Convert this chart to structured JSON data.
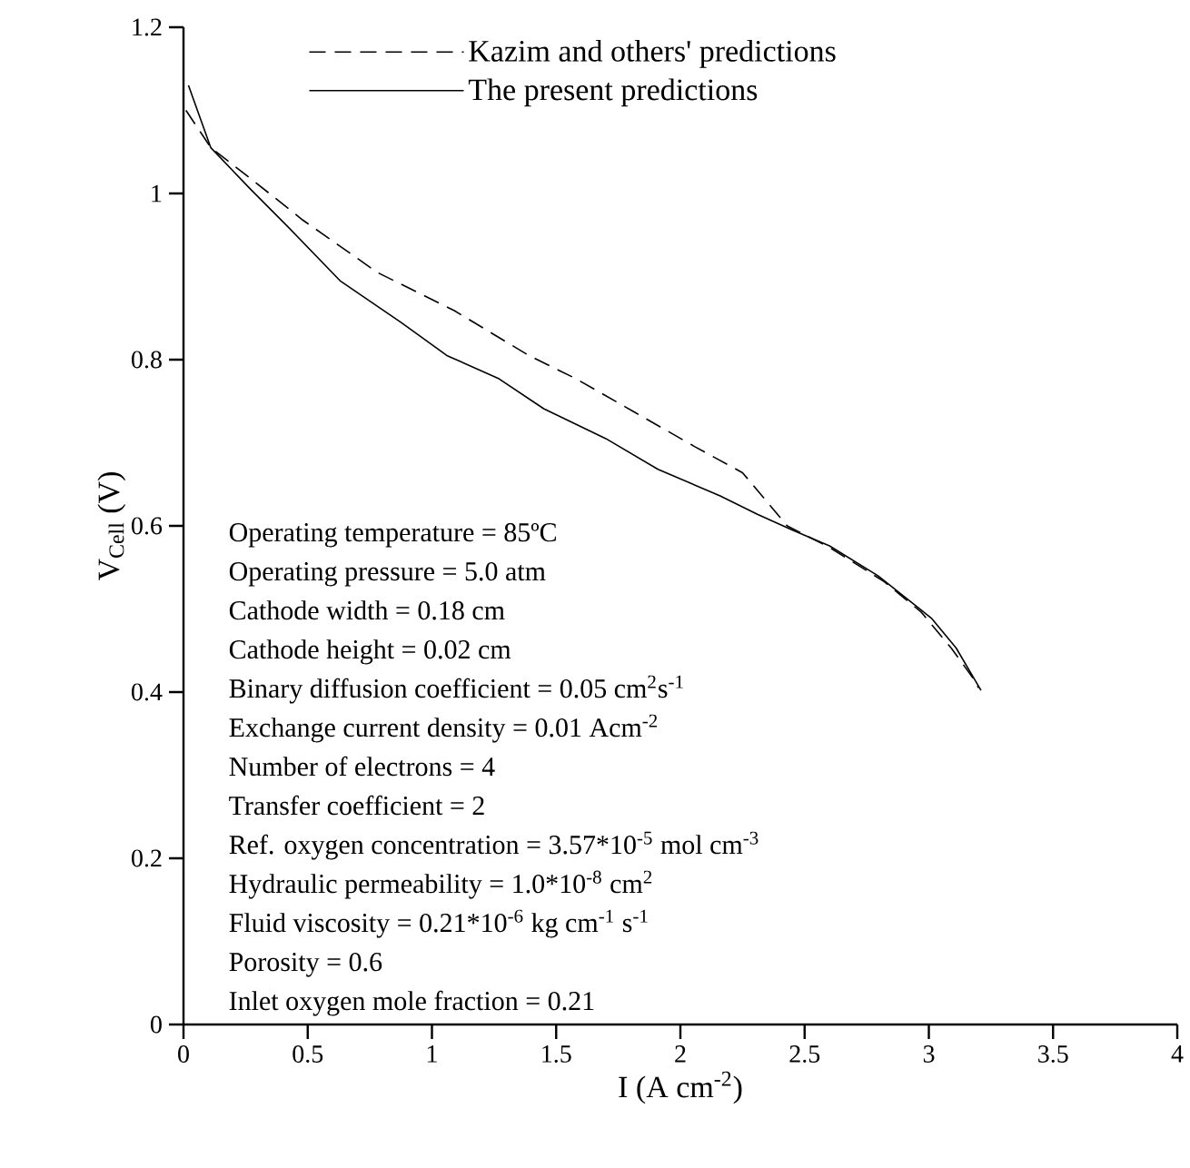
{
  "chart_data": {
    "type": "line",
    "xlabel": "I (A cm$^{-2}$)",
    "ylabel": "V$_{Cell}$ (V)",
    "xlim": [
      0,
      4
    ],
    "ylim": [
      0,
      1.2
    ],
    "xticks": [
      0,
      0.5,
      1,
      1.5,
      2,
      2.5,
      3,
      3.5,
      4
    ],
    "yticks": [
      0,
      0.2,
      0.4,
      0.6,
      0.8,
      1,
      1.2
    ],
    "grid": false,
    "legend": "top",
    "marker": "none",
    "series": [
      {
        "name": "Kazim and others' predictions",
        "color": "#000000",
        "line_style": "dashed",
        "x": [
          0.01,
          0.11,
          0.27,
          0.48,
          0.78,
          1.09,
          1.39,
          1.58,
          1.82,
          2.06,
          2.25,
          2.43,
          2.6,
          2.82,
          2.97,
          3.09,
          3.18,
          3.2
        ],
        "values": [
          1.1,
          1.055,
          1.018,
          0.968,
          0.905,
          0.859,
          0.805,
          0.777,
          0.736,
          0.695,
          0.664,
          0.6,
          0.574,
          0.533,
          0.496,
          0.453,
          0.416,
          0.405
        ]
      },
      {
        "name": "The present predictions",
        "color": "#000000",
        "line_style": "solid",
        "x": [
          0.02,
          0.11,
          0.27,
          0.42,
          0.63,
          0.875,
          1.06,
          1.27,
          1.45,
          1.7,
          1.91,
          2.16,
          2.31,
          2.45,
          2.6,
          2.795,
          3.01,
          3.11,
          3.21
        ],
        "values": [
          1.13,
          1.055,
          1.005,
          0.96,
          0.895,
          0.845,
          0.805,
          0.777,
          0.741,
          0.705,
          0.668,
          0.636,
          0.614,
          0.595,
          0.576,
          0.54,
          0.489,
          0.453,
          0.402
        ]
      }
    ],
    "annotations": [
      "Operating temperature = 85ºC",
      "Operating pressure = 5.0 atm",
      "Cathode width = 0.18 cm",
      "Cathode height = 0.02 cm",
      "Binary diffusion coefficient = 0.05 cm$^{2}$s$^{-1}$",
      "Exchange current density = 0.01 Acm$^{-2}$",
      "Number of electrons = 4",
      "Transfer coefficient = 2",
      "Ref. oxygen concentration = 3.57*10$^{-5}$ mol cm$^{-3}$",
      "Hydraulic permeability = 1.0*10$^{-8}$ cm$^{2}$",
      "Fluid viscosity = 0.21*10$^{-6}$ kg cm$^{-1}$ s$^{-1}$",
      "Porosity = 0.6",
      "Inlet oxygen mole fraction = 0.21"
    ]
  }
}
